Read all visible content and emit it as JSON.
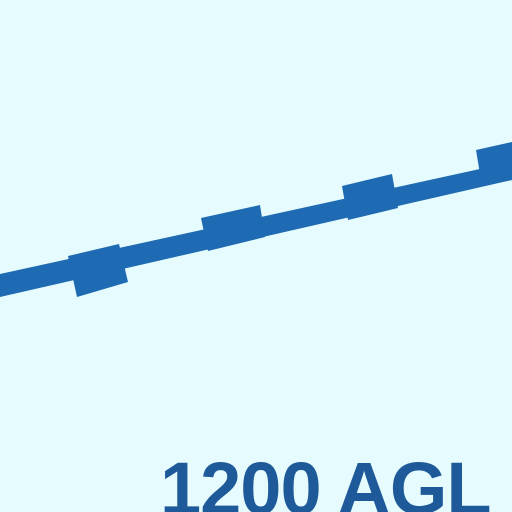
{
  "map": {
    "label": "1200 AGL",
    "colors": {
      "background": "#e6fbfd",
      "feature": "#1e6ab3",
      "label": "#1e5a99"
    },
    "features": [
      {
        "type": "dashed boundary line",
        "style": "alternating thin and thick segments"
      }
    ]
  }
}
